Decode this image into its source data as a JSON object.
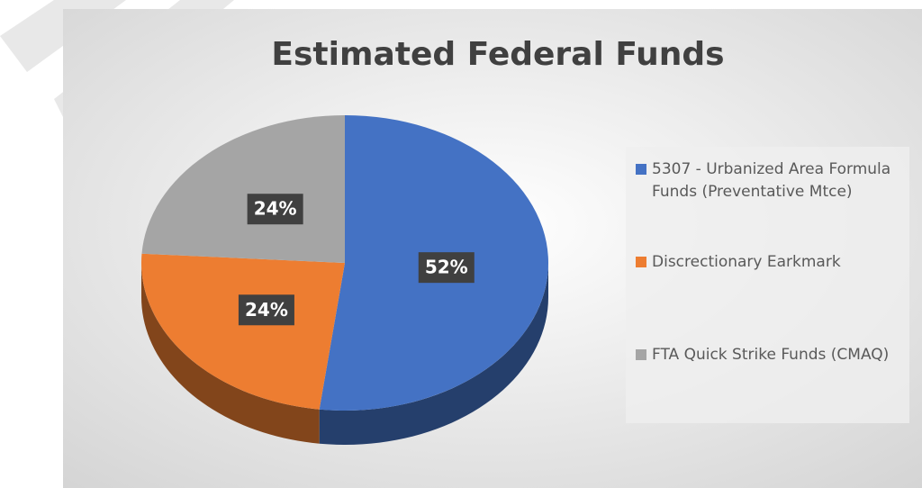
{
  "chart_data": {
    "type": "pie",
    "title": "Estimated Federal Funds",
    "categories": [
      "5307 - Urbanized Area Formula Funds (Preventative Mtce)",
      "Discrectionary Earkmark",
      "FTA Quick Strike Funds (CMAQ)"
    ],
    "values": [
      52,
      24,
      24
    ],
    "value_labels": [
      "52%",
      "24%",
      "24%"
    ],
    "colors": [
      "#4472c4",
      "#ed7d31",
      "#a5a5a5"
    ],
    "legend": "right"
  }
}
